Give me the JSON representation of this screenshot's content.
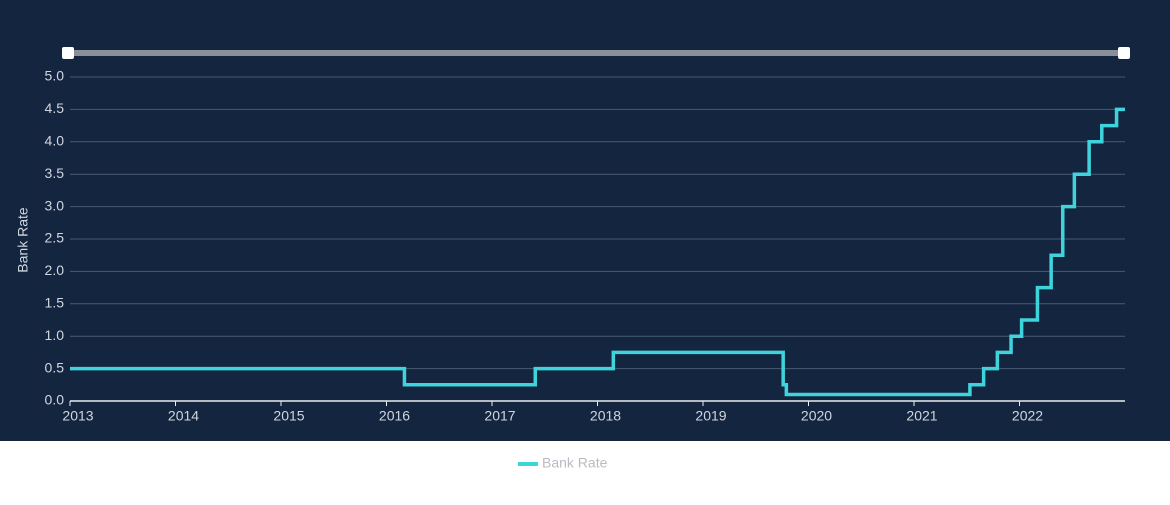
{
  "chart_data": {
    "type": "line",
    "y_label": "Bank Rate",
    "x": [
      2013.0,
      2016.17,
      2016.17,
      2017.41,
      2017.41,
      2018.15,
      2018.15,
      2019.76,
      2019.76,
      2019.79,
      2019.79,
      2021.53,
      2021.53,
      2021.66,
      2021.66,
      2021.79,
      2021.79,
      2021.92,
      2021.92,
      2022.02,
      2022.02,
      2022.17,
      2022.17,
      2022.3,
      2022.3,
      2022.41,
      2022.41,
      2022.52,
      2022.52,
      2022.66,
      2022.66,
      2022.78,
      2022.78,
      2022.92,
      2022.92,
      2023.0
    ],
    "series": [
      {
        "name": "Bank Rate",
        "color": "#3fd4dc",
        "values": [
          0.5,
          0.5,
          0.25,
          0.25,
          0.5,
          0.5,
          0.75,
          0.75,
          0.25,
          0.25,
          0.1,
          0.1,
          0.25,
          0.25,
          0.5,
          0.5,
          0.75,
          0.75,
          1.0,
          1.0,
          1.25,
          1.25,
          1.75,
          1.75,
          2.25,
          2.25,
          3.0,
          3.0,
          3.5,
          3.5,
          4.0,
          4.0,
          4.25,
          4.25,
          4.5,
          4.5
        ]
      }
    ],
    "xlim": [
      2013,
      2023
    ],
    "xticks": [
      2013,
      2014,
      2015,
      2016,
      2017,
      2018,
      2019,
      2020,
      2021,
      2022
    ],
    "ylim": [
      0,
      5
    ],
    "yticks": [
      {
        "value": 0,
        "label": "0.0"
      },
      {
        "value": 0.5,
        "label": "0.5"
      },
      {
        "value": 1,
        "label": "1.0"
      },
      {
        "value": 1.5,
        "label": "1.5"
      },
      {
        "value": 2,
        "label": "2.0"
      },
      {
        "value": 2.5,
        "label": "2.5"
      },
      {
        "value": 3,
        "label": "3.0"
      },
      {
        "value": 3.5,
        "label": "3.5"
      },
      {
        "value": 4,
        "label": "4.0"
      },
      {
        "value": 4.5,
        "label": "4.5"
      },
      {
        "value": 5,
        "label": "5.0"
      }
    ],
    "grid": true
  }
}
